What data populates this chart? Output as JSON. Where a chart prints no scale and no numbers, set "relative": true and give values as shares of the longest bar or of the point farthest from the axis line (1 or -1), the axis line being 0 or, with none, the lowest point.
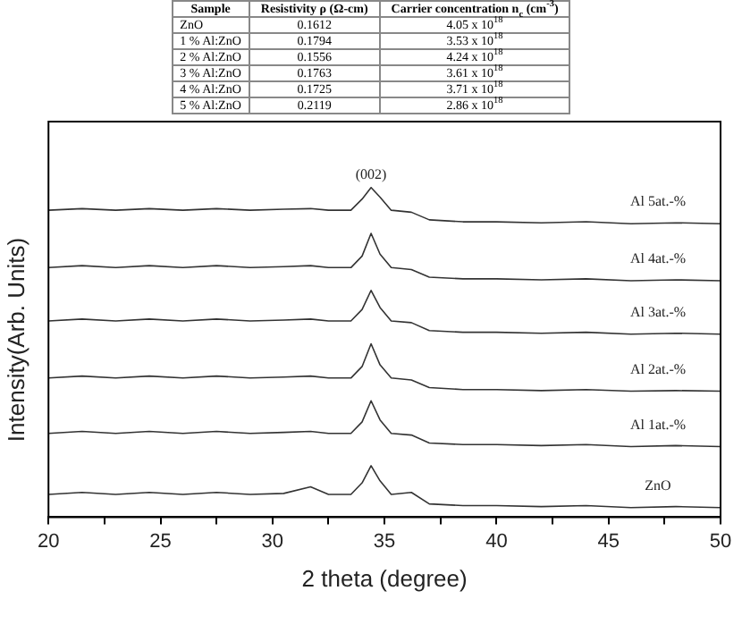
{
  "chart_data": [
    {
      "type": "other",
      "categories": [
        "Sample",
        "Resistivity ρ (Ω-cm)",
        "Carrier concentration n$_{c}$ (cm$^{-3}$)"
      ],
      "cells": [
        [
          "ZnO",
          "0.1612",
          "4.05 x 10$^{18}$"
        ],
        [
          "1 % Al:ZnO",
          "0.1794",
          "3.53 x 10$^{18}$"
        ],
        [
          "2 % Al:ZnO",
          "0.1556",
          "4.24 x 10$^{18}$"
        ],
        [
          "3 % Al:ZnO",
          "0.1763",
          "3.61 x 10$^{18}$"
        ],
        [
          "4 % Al:ZnO",
          "0.1725",
          "3.71 x 10$^{18}$"
        ],
        [
          "5 % Al:ZnO",
          "0.2119",
          "2.86 x 10$^{18}$"
        ]
      ]
    },
    {
      "type": "line",
      "relative": true,
      "xlabel": "2 theta (degree)",
      "ylabel": "Intensity(Arb. Units)",
      "marker": "none",
      "x": [
        20,
        21.5,
        23,
        24.5,
        26,
        27.5,
        29,
        30.5,
        31.7,
        32.5,
        33.5,
        34,
        34.4,
        34.8,
        35.3,
        36.2,
        37,
        38.5,
        40,
        42,
        44,
        46,
        48,
        50
      ],
      "xlim": [
        20,
        50
      ],
      "xticks": [
        20,
        {
          "value": 22.5,
          "label": null
        },
        25,
        {
          "value": 27.5,
          "label": null
        },
        30,
        {
          "value": 32.5,
          "label": null
        },
        35,
        {
          "value": 37.5,
          "label": null
        },
        40,
        {
          "value": 42.5,
          "label": null
        },
        45,
        {
          "value": 47.5,
          "label": null
        },
        50
      ],
      "annotations": [
        {
          "text": "(002)",
          "x": 34.4,
          "y": 1.0
        }
      ],
      "series": [
        {
          "name": "Al 5at.-%",
          "color": "#333333",
          "values": [
            0.931,
            0.936,
            0.931,
            0.936,
            0.931,
            0.936,
            0.931,
            0.934,
            0.936,
            0.931,
            0.931,
            0.965,
            1.0,
            0.971,
            0.931,
            0.925,
            0.902,
            0.896,
            0.896,
            0.893,
            0.896,
            0.89,
            0.893,
            0.89
          ]
        },
        {
          "name": "Al 4at.-%",
          "color": "#333333",
          "values": [
            0.757,
            0.763,
            0.757,
            0.763,
            0.757,
            0.763,
            0.757,
            0.76,
            0.763,
            0.757,
            0.757,
            0.792,
            0.861,
            0.798,
            0.757,
            0.751,
            0.728,
            0.723,
            0.723,
            0.72,
            0.723,
            0.717,
            0.72,
            0.717
          ]
        },
        {
          "name": "Al 3at.-%",
          "color": "#333333",
          "values": [
            0.595,
            0.601,
            0.595,
            0.601,
            0.595,
            0.601,
            0.595,
            0.598,
            0.601,
            0.595,
            0.595,
            0.63,
            0.688,
            0.636,
            0.595,
            0.59,
            0.566,
            0.561,
            0.561,
            0.558,
            0.561,
            0.555,
            0.558,
            0.555
          ]
        },
        {
          "name": "Al 2at.-%",
          "color": "#333333",
          "values": [
            0.422,
            0.428,
            0.422,
            0.428,
            0.422,
            0.428,
            0.422,
            0.425,
            0.428,
            0.422,
            0.422,
            0.457,
            0.526,
            0.462,
            0.422,
            0.416,
            0.393,
            0.387,
            0.387,
            0.384,
            0.387,
            0.382,
            0.384,
            0.382
          ]
        },
        {
          "name": "Al 1at.-%",
          "color": "#333333",
          "values": [
            0.254,
            0.26,
            0.254,
            0.26,
            0.254,
            0.26,
            0.254,
            0.257,
            0.26,
            0.254,
            0.254,
            0.289,
            0.353,
            0.295,
            0.254,
            0.249,
            0.225,
            0.22,
            0.22,
            0.217,
            0.22,
            0.214,
            0.217,
            0.214
          ]
        },
        {
          "name": "ZnO",
          "color": "#333333",
          "values": [
            0.069,
            0.075,
            0.069,
            0.075,
            0.069,
            0.075,
            0.069,
            0.072,
            0.092,
            0.069,
            0.069,
            0.104,
            0.156,
            0.11,
            0.069,
            0.075,
            0.04,
            0.035,
            0.035,
            0.032,
            0.035,
            0.029,
            0.032,
            0.029
          ]
        }
      ]
    }
  ]
}
